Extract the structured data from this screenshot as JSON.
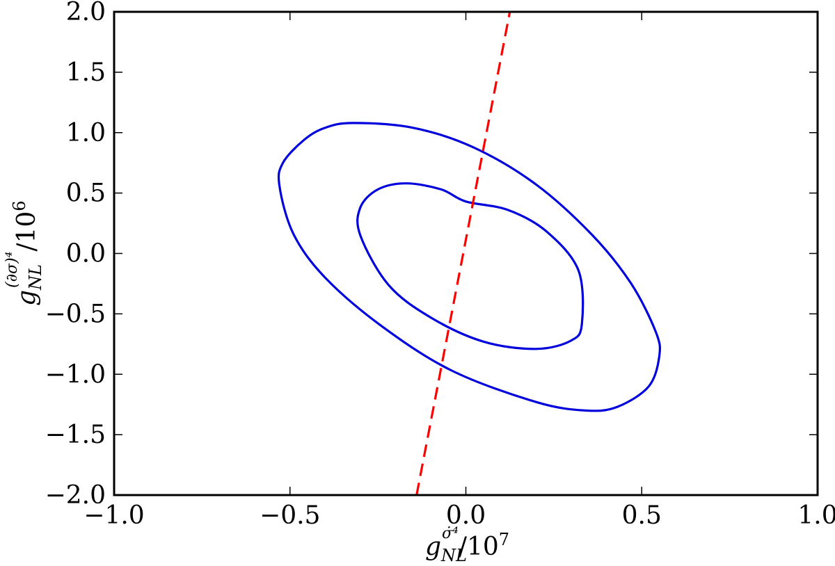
{
  "chart_data": {
    "type": "line",
    "title": "",
    "xlabel": {
      "base": "g",
      "sup": "σ̇⁴",
      "sub": "NL",
      "tail": "/10",
      "exp": "7"
    },
    "ylabel": {
      "base": "g",
      "sup": "(∂σ)⁴",
      "sub": "NL",
      "tail": "/10",
      "exp": "6"
    },
    "xlim": [
      -1.0,
      1.0
    ],
    "ylim": [
      -2.0,
      2.0
    ],
    "xticks": [
      -1.0,
      -0.5,
      0.0,
      0.5,
      1.0
    ],
    "xtick_labels": [
      "−1.0",
      "−0.5",
      "0.0",
      "0.5",
      "1.0"
    ],
    "yticks": [
      -2.0,
      -1.5,
      -1.0,
      -0.5,
      0.0,
      0.5,
      1.0,
      1.5,
      2.0
    ],
    "ytick_labels": [
      "−2.0",
      "−1.5",
      "−1.0",
      "−0.5",
      "0.0",
      "0.5",
      "1.0",
      "1.5",
      "2.0"
    ],
    "grid": false,
    "legend": "none",
    "series": [
      {
        "kind": "ellipse-contour",
        "color": "#0000dd",
        "style": "solid",
        "points": [
          [
            0.0,
            0.43
          ],
          [
            0.12,
            0.36
          ],
          [
            0.23,
            0.18
          ],
          [
            0.32,
            -0.14
          ],
          [
            0.33,
            -0.58
          ],
          [
            0.3,
            -0.72
          ],
          [
            0.2,
            -0.79
          ],
          [
            0.05,
            -0.73
          ],
          [
            -0.1,
            -0.53
          ],
          [
            -0.22,
            -0.26
          ],
          [
            -0.3,
            0.15
          ],
          [
            -0.3,
            0.38
          ],
          [
            -0.25,
            0.53
          ],
          [
            -0.17,
            0.58
          ],
          [
            -0.07,
            0.53
          ],
          [
            0.0,
            0.43
          ]
        ]
      },
      {
        "kind": "ellipse-contour",
        "color": "#0000dd",
        "style": "solid",
        "points": [
          [
            -0.32,
            1.08
          ],
          [
            -0.15,
            1.04
          ],
          [
            0.02,
            0.88
          ],
          [
            0.2,
            0.57
          ],
          [
            0.36,
            0.15
          ],
          [
            0.47,
            -0.25
          ],
          [
            0.54,
            -0.65
          ],
          [
            0.55,
            -0.85
          ],
          [
            0.52,
            -1.1
          ],
          [
            0.43,
            -1.27
          ],
          [
            0.34,
            -1.3
          ],
          [
            0.2,
            -1.23
          ],
          [
            -0.04,
            -0.97
          ],
          [
            -0.24,
            -0.6
          ],
          [
            -0.4,
            -0.2
          ],
          [
            -0.49,
            0.16
          ],
          [
            -0.53,
            0.56
          ],
          [
            -0.52,
            0.75
          ],
          [
            -0.46,
            0.94
          ],
          [
            -0.4,
            1.04
          ],
          [
            -0.32,
            1.08
          ]
        ]
      },
      {
        "kind": "line",
        "color": "#ff0000",
        "style": "dashed",
        "points": [
          [
            -0.14,
            -2.0
          ],
          [
            0.125,
            2.0
          ]
        ]
      }
    ]
  }
}
